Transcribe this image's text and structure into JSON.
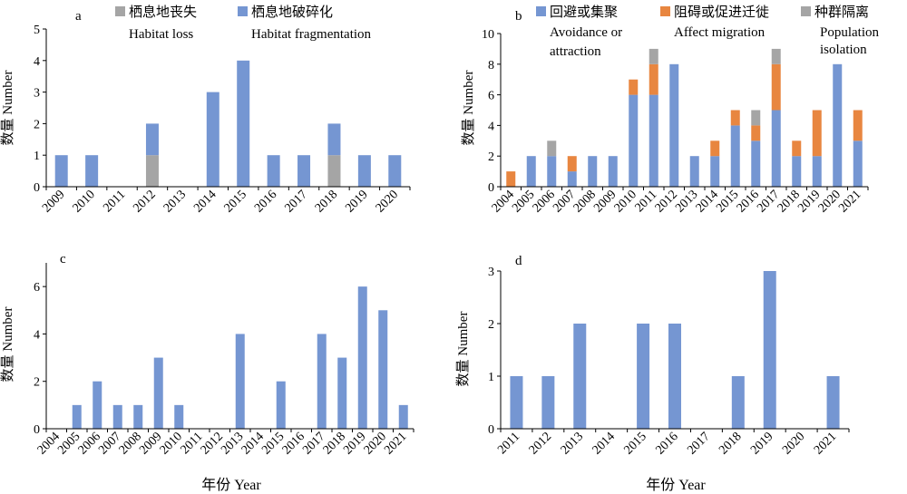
{
  "colors": {
    "blue": "#7596d2",
    "orange": "#e88640",
    "gray": "#a5a5a5"
  },
  "figure": {
    "xlabel": "年份 Year"
  },
  "chart_data": [
    {
      "type": "bar",
      "panel": "a",
      "stacked": true,
      "categories": [
        "2009",
        "2010",
        "2011",
        "2012",
        "2013",
        "2014",
        "2015",
        "2016",
        "2017",
        "2018",
        "2019",
        "2020"
      ],
      "ylabel": "数量 Number",
      "ylim": [
        0,
        5
      ],
      "yticks": [
        0,
        1,
        2,
        3,
        4,
        5
      ],
      "legend_position": "top",
      "series": [
        {
          "name": "栖息地丧失",
          "name_en": "Habitat loss",
          "color": "gray",
          "values": [
            0,
            0,
            0,
            1,
            0,
            0,
            0,
            0,
            0,
            1,
            0,
            0
          ]
        },
        {
          "name": "栖息地破碎化",
          "name_en": "Habitat fragmentation",
          "color": "blue",
          "values": [
            1,
            1,
            0,
            1,
            0,
            3,
            4,
            1,
            1,
            1,
            1,
            1
          ]
        }
      ]
    },
    {
      "type": "bar",
      "panel": "b",
      "stacked": true,
      "categories": [
        "2004",
        "2005",
        "2006",
        "2007",
        "2008",
        "2009",
        "2010",
        "2011",
        "2012",
        "2013",
        "2014",
        "2015",
        "2016",
        "2017",
        "2018",
        "2019",
        "2020",
        "2021"
      ],
      "ylabel": "数量 Number",
      "ylim": [
        0,
        10
      ],
      "yticks": [
        0,
        2,
        4,
        6,
        8,
        10
      ],
      "legend_position": "top",
      "series": [
        {
          "name": "回避或集聚",
          "name_en": "Avoidance or attraction",
          "color": "blue",
          "values": [
            0,
            2,
            2,
            1,
            2,
            2,
            6,
            6,
            8,
            2,
            2,
            4,
            3,
            5,
            2,
            2,
            8,
            3
          ]
        },
        {
          "name": "阻碍或促进迁徙",
          "name_en": "Affect migration",
          "color": "orange",
          "values": [
            1,
            0,
            0,
            1,
            0,
            0,
            1,
            2,
            0,
            0,
            1,
            1,
            1,
            3,
            1,
            3,
            0,
            2
          ]
        },
        {
          "name": "种群隔离",
          "name_en": "Population isolation",
          "color": "gray",
          "values": [
            0,
            0,
            1,
            0,
            0,
            0,
            0,
            1,
            0,
            0,
            0,
            0,
            1,
            1,
            0,
            0,
            0,
            0
          ]
        }
      ]
    },
    {
      "type": "bar",
      "panel": "c",
      "categories": [
        "2004",
        "2005",
        "2006",
        "2007",
        "2008",
        "2009",
        "2010",
        "2011",
        "2012",
        "2013",
        "2014",
        "2015",
        "2016",
        "2017",
        "2018",
        "2019",
        "2020",
        "2021"
      ],
      "ylabel": "数量 Number",
      "ylim": [
        0,
        7
      ],
      "yticks": [
        0,
        2,
        4,
        6
      ],
      "series": [
        {
          "name": "",
          "color": "blue",
          "values": [
            0,
            1,
            2,
            1,
            1,
            3,
            1,
            0,
            0,
            4,
            0,
            2,
            0,
            4,
            3,
            6,
            5,
            1
          ]
        }
      ]
    },
    {
      "type": "bar",
      "panel": "d",
      "categories": [
        "2011",
        "2012",
        "2013",
        "2014",
        "2015",
        "2016",
        "2017",
        "2018",
        "2019",
        "2020",
        "2021"
      ],
      "ylabel": "数量 Number",
      "ylim": [
        0,
        3
      ],
      "yticks": [
        0,
        1,
        2,
        3
      ],
      "series": [
        {
          "name": "",
          "color": "blue",
          "values": [
            1,
            1,
            2,
            0,
            2,
            2,
            0,
            1,
            3,
            0,
            1
          ]
        }
      ]
    }
  ]
}
